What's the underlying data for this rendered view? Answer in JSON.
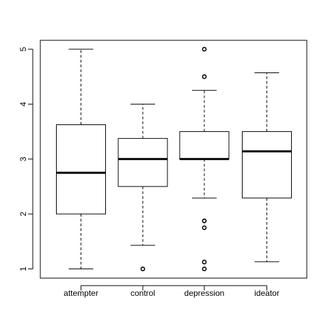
{
  "chart_data": {
    "type": "boxplot",
    "title": "",
    "xlabel": "",
    "ylabel": "",
    "categories": [
      "attempter",
      "control",
      "depression",
      "ideator"
    ],
    "ylim": [
      0.85,
      5.15
    ],
    "yticks": [
      1,
      2,
      3,
      4,
      5
    ],
    "grid": false,
    "boxes": [
      {
        "name": "attempter",
        "whisker_low": 1.0,
        "q1": 2.0,
        "median": 2.75,
        "q3": 3.625,
        "whisker_high": 5.0,
        "outliers": []
      },
      {
        "name": "control",
        "whisker_low": 1.43,
        "q1": 2.5,
        "median": 3.0,
        "q3": 3.375,
        "whisker_high": 4.0,
        "outliers": [
          1.0
        ]
      },
      {
        "name": "depression",
        "whisker_low": 2.29,
        "q1": 3.0,
        "median": 3.0,
        "q3": 3.5,
        "whisker_high": 4.25,
        "outliers": [
          5.0,
          4.5,
          1.875,
          1.75,
          1.125,
          1.0
        ]
      },
      {
        "name": "ideator",
        "whisker_low": 1.13,
        "q1": 2.29,
        "median": 3.14,
        "q3": 3.5,
        "whisker_high": 4.57,
        "outliers": []
      }
    ]
  }
}
